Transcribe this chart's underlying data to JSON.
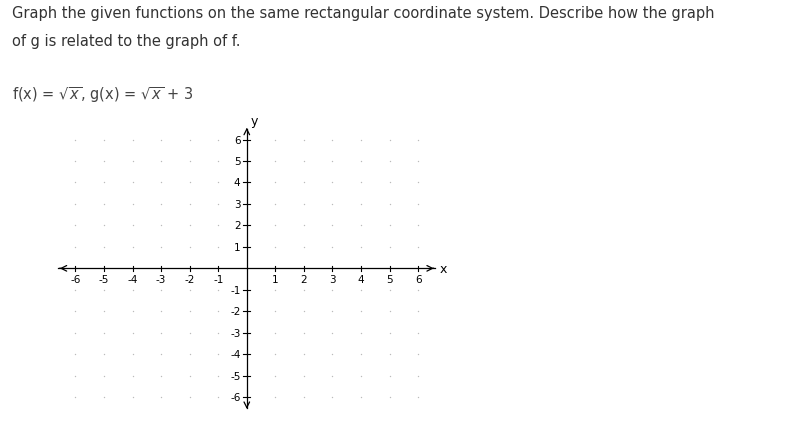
{
  "title_line1": "Graph the given functions on the same rectangular coordinate system. Describe how the graph",
  "title_line2": "of g is related to the graph of f.",
  "func_label_text": "f(x) = √x, g(x) = √x + 3",
  "xmin": -6,
  "xmax": 6,
  "ymin": -6,
  "ymax": 6,
  "tick_positions": [
    -6,
    -5,
    -4,
    -3,
    -2,
    -1,
    1,
    2,
    3,
    4,
    5,
    6
  ],
  "dot_color": "#bbbbbb",
  "axis_color": "#000000",
  "background_color": "#ffffff",
  "font_size_title": 10.5,
  "font_size_func": 10.5,
  "font_size_tick": 7.5,
  "font_size_axlabel": 9,
  "x_label": "x",
  "y_label": "y"
}
